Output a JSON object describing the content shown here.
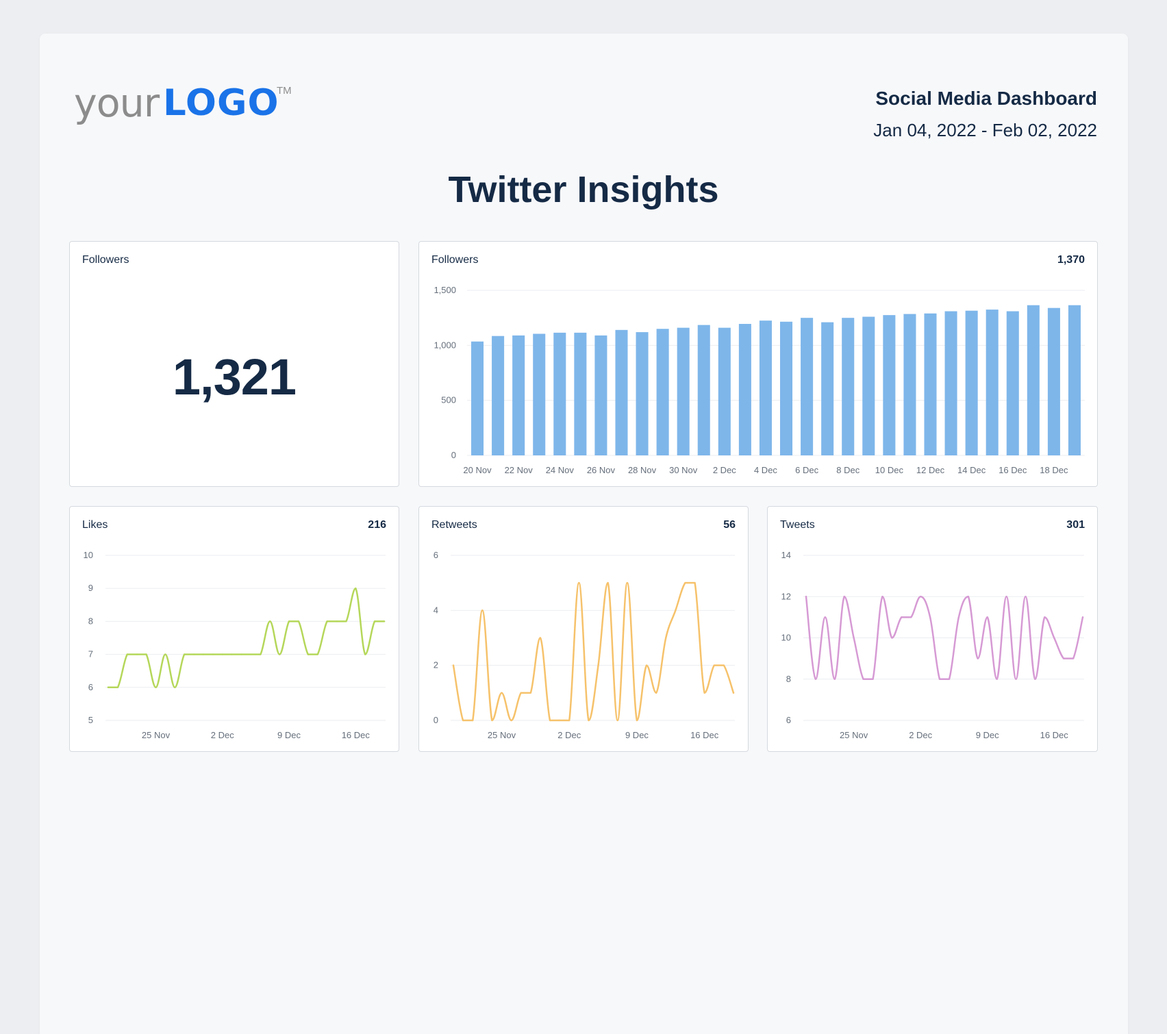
{
  "header": {
    "logo_text_your": "your",
    "logo_text_main": "LOGO",
    "logo_tm": "TM",
    "report_title": "Social Media Dashboard",
    "date_range": "Jan 04, 2022 - Feb 02, 2022"
  },
  "page_title": "Twitter Insights",
  "colors": {
    "bar": "#7eb6ea",
    "likes": "#b5d75a",
    "retweets": "#f6c26b",
    "tweets": "#d69ad4",
    "grid": "#ebedf0",
    "text": "#152a45"
  },
  "followers_kpi": {
    "title": "Followers",
    "value": "1,321"
  },
  "followers_chart": {
    "title": "Followers",
    "total": "1,370"
  },
  "likes_chart": {
    "title": "Likes",
    "total": "216"
  },
  "retweets_chart": {
    "title": "Retweets",
    "total": "56"
  },
  "tweets_chart": {
    "title": "Tweets",
    "total": "301"
  },
  "chart_data": [
    {
      "id": "followers",
      "type": "bar",
      "ylim": [
        0,
        1500
      ],
      "yticks": [
        0,
        500,
        1000,
        1500
      ],
      "ytick_labels": [
        "0",
        "500",
        "1,000",
        "1,500"
      ],
      "x_tick_labels": [
        "20 Nov",
        "22 Nov",
        "24 Nov",
        "26 Nov",
        "28 Nov",
        "30 Nov",
        "2 Dec",
        "4 Dec",
        "6 Dec",
        "8 Dec",
        "10 Dec",
        "12 Dec",
        "14 Dec",
        "16 Dec",
        "18 Dec"
      ],
      "categories": [
        "20 Nov",
        "21 Nov",
        "22 Nov",
        "23 Nov",
        "24 Nov",
        "25 Nov",
        "26 Nov",
        "27 Nov",
        "28 Nov",
        "29 Nov",
        "30 Nov",
        "1 Dec",
        "2 Dec",
        "3 Dec",
        "4 Dec",
        "5 Dec",
        "6 Dec",
        "7 Dec",
        "8 Dec",
        "9 Dec",
        "10 Dec",
        "11 Dec",
        "12 Dec",
        "13 Dec",
        "14 Dec",
        "15 Dec",
        "16 Dec",
        "17 Dec",
        "18 Dec",
        "19 Dec"
      ],
      "values": [
        1035,
        1085,
        1090,
        1105,
        1115,
        1115,
        1090,
        1140,
        1120,
        1150,
        1160,
        1185,
        1160,
        1195,
        1225,
        1215,
        1250,
        1210,
        1250,
        1260,
        1275,
        1285,
        1290,
        1310,
        1315,
        1325,
        1310,
        1365,
        1340,
        1365
      ],
      "grid": true
    },
    {
      "id": "likes",
      "type": "line",
      "ylim": [
        5,
        10
      ],
      "yticks": [
        5,
        6,
        7,
        8,
        9,
        10
      ],
      "x_tick_labels": [
        "25 Nov",
        "2 Dec",
        "9 Dec",
        "16 Dec"
      ],
      "values": [
        6,
        6,
        7,
        7,
        7,
        6,
        7,
        6,
        7,
        7,
        7,
        7,
        7,
        7,
        7,
        7,
        7,
        8,
        7,
        8,
        8,
        7,
        7,
        8,
        8,
        8,
        9,
        7,
        8,
        8
      ],
      "grid": true
    },
    {
      "id": "retweets",
      "type": "line",
      "ylim": [
        0,
        6
      ],
      "yticks": [
        0,
        2,
        4,
        6
      ],
      "x_tick_labels": [
        "25 Nov",
        "2 Dec",
        "9 Dec",
        "16 Dec"
      ],
      "values": [
        2,
        0,
        0,
        4,
        0,
        1,
        0,
        1,
        1,
        3,
        0,
        0,
        0,
        5,
        0,
        2,
        5,
        0,
        5,
        0,
        2,
        1,
        3,
        4,
        5,
        5,
        1,
        2,
        2,
        1
      ],
      "grid": true
    },
    {
      "id": "tweets",
      "type": "line",
      "ylim": [
        6,
        14
      ],
      "yticks": [
        6,
        8,
        10,
        12,
        14
      ],
      "x_tick_labels": [
        "25 Nov",
        "2 Dec",
        "9 Dec",
        "16 Dec"
      ],
      "values": [
        12,
        8,
        11,
        8,
        12,
        10,
        8,
        8,
        12,
        10,
        11,
        11,
        12,
        11,
        8,
        8,
        11,
        12,
        9,
        11,
        8,
        12,
        8,
        12,
        8,
        11,
        10,
        9,
        9,
        11
      ],
      "grid": true
    }
  ]
}
